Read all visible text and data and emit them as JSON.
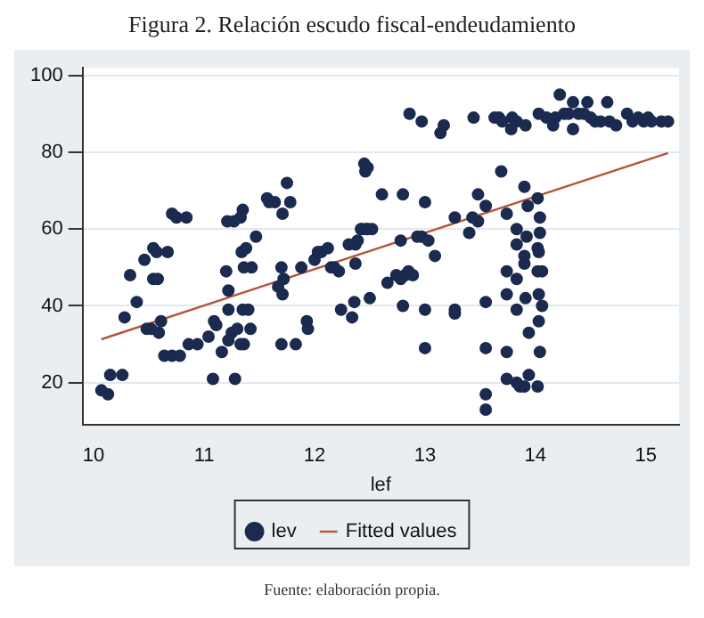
{
  "chart_data": {
    "type": "scatter",
    "title": "Figura 2. Relación escudo fiscal-endeudamiento",
    "xlabel": "lef",
    "annotations": [
      "Fuente: elaboración propia."
    ],
    "xlim": [
      9.9,
      15.3
    ],
    "xticks": [
      10,
      11,
      12,
      13,
      14,
      15
    ],
    "ylim": [
      9,
      102
    ],
    "yticks": [
      20,
      40,
      60,
      80,
      100
    ],
    "grid": "y",
    "legend": "bottom",
    "series": [
      {
        "name": "lev",
        "color": "#1a2b4f",
        "marker": "circle",
        "x": [
          10.07,
          10.13,
          10.15,
          10.26,
          10.28,
          10.33,
          10.39,
          10.46,
          10.48,
          10.52,
          10.54,
          10.57,
          10.54,
          10.58,
          10.59,
          10.61,
          10.67,
          10.64,
          10.71,
          10.75,
          10.71,
          10.78,
          10.84,
          10.86,
          10.94,
          11.04,
          11.08,
          11.09,
          11.11,
          11.16,
          11.2,
          11.21,
          11.22,
          11.22,
          11.22,
          11.25,
          11.27,
          11.28,
          11.3,
          11.33,
          11.34,
          11.35,
          11.38,
          11.35,
          11.4,
          11.36,
          11.33,
          11.36,
          11.42,
          11.43,
          11.47,
          11.57,
          11.59,
          11.64,
          11.71,
          11.75,
          11.78,
          11.67,
          11.71,
          11.7,
          11.72,
          11.7,
          11.83,
          11.88,
          11.93,
          11.94,
          12,
          12.03,
          12.06,
          12.12,
          12.15,
          12.18,
          12.22,
          12.24,
          12.31,
          12.34,
          12.36,
          12.37,
          12.37,
          12.39,
          12.43,
          12.45,
          12.48,
          12.48,
          12.42,
          12.46,
          12.47,
          12.52,
          12.5,
          12.61,
          12.66,
          12.74,
          12.78,
          12.82,
          12.85,
          12.89,
          12.8,
          12.78,
          12.8,
          12.86,
          12.97,
          12.93,
          12.97,
          13.03,
          13,
          13,
          13,
          13.09,
          13.14,
          13.17,
          13.27,
          13.27,
          13.27,
          13.4,
          13.43,
          13.44,
          13.48,
          13.48,
          13.55,
          13.55,
          13.55,
          13.55,
          13.55,
          13.63,
          13.67,
          13.7,
          13.69,
          13.74,
          13.74,
          13.74,
          13.74,
          13.74,
          13.79,
          13.78,
          13.83,
          13.83,
          13.83,
          13.83,
          13.83,
          13.83,
          13.9,
          13.91,
          13.9,
          13.9,
          13.91,
          13.92,
          13.93,
          13.94,
          13.94,
          13.9,
          13.86,
          14.02,
          14.03,
          14.04,
          14.02,
          14.04,
          14.03,
          14.02,
          14.06,
          14.03,
          14.06,
          14.03,
          14.04,
          14.02,
          14.1,
          14.16,
          14.18,
          14.22,
          14.26,
          14.3,
          14.34,
          14.34,
          14.39,
          14.44,
          14.47,
          14.5,
          14.54,
          14.59,
          14.65,
          14.67,
          14.73,
          14.83,
          14.88,
          14.93,
          14.98,
          15.02,
          15.05,
          15.14,
          15.2
        ],
        "values": [
          18,
          17,
          22,
          22,
          37,
          48,
          41,
          52,
          34,
          34,
          55,
          54,
          47,
          47,
          33,
          36,
          54,
          27,
          64,
          63,
          27,
          27,
          63,
          30,
          30,
          32,
          21,
          36,
          35,
          28,
          49,
          62,
          44,
          39,
          31,
          33,
          62,
          21,
          34,
          63,
          54,
          65,
          55,
          39,
          39,
          50,
          30,
          30,
          34,
          50,
          58,
          68,
          67,
          67,
          64,
          72,
          67,
          45,
          43,
          50,
          47,
          30,
          30,
          50,
          36,
          34,
          52,
          54,
          54,
          55,
          50,
          50,
          49,
          39,
          56,
          37,
          41,
          51,
          56,
          57,
          60,
          77,
          76,
          60,
          60,
          75,
          60,
          60,
          42,
          69,
          46,
          48,
          47,
          48,
          49,
          48,
          69,
          57,
          40,
          90,
          88,
          58,
          58,
          57,
          67,
          39,
          29,
          53,
          85,
          87,
          39,
          38,
          63,
          59,
          63,
          89,
          69,
          62,
          66,
          41,
          29,
          17,
          13,
          89,
          89,
          88,
          75,
          64,
          49,
          43,
          28,
          21,
          89,
          86,
          88,
          60,
          56,
          47,
          39,
          20,
          71,
          87,
          53,
          51,
          42,
          58,
          66,
          33,
          22,
          19,
          19,
          68,
          90,
          63,
          55,
          59,
          54,
          49,
          49,
          43,
          40,
          36,
          28,
          19,
          89,
          87,
          89,
          95,
          90,
          90,
          93,
          86,
          90,
          90,
          93,
          89,
          88,
          88,
          93,
          88,
          87,
          90,
          88,
          89,
          88,
          89,
          88,
          88,
          88
        ]
      },
      {
        "name": "Fitted values",
        "type": "line",
        "color": "#b5543a",
        "x": [
          10.07,
          15.2
        ],
        "values": [
          31.3,
          79.8
        ]
      }
    ]
  }
}
